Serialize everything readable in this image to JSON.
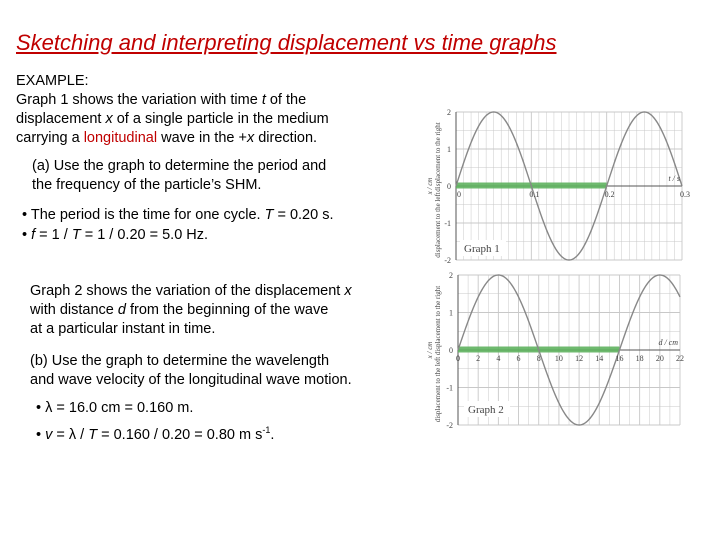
{
  "title": "Sketching and interpreting displacement vs time  graphs",
  "example_label": "EXAMPLE:",
  "intro": {
    "line1_a": "Graph 1 shows the variation with time ",
    "line1_var": "t",
    "line1_b": " of the",
    "line2_a": "displacement ",
    "line2_var": "x",
    "line2_b": " of a single particle in the medium",
    "line3_a": "carrying a ",
    "line3_highlight": "longitudinal",
    "line3_b": " wave  in the +",
    "line3_var": "x",
    "line3_c": " direction."
  },
  "part_a": {
    "line1": "(a) Use the graph to determine the period and",
    "line2": "the frequency of the particle’s SHM."
  },
  "answer_a": {
    "bullet": "•",
    "line1_a": " The period is the time for one cycle. ",
    "line1_var": "T",
    "line1_b": " = 0.20 s.",
    "line2_var1": "f",
    "line2_a": " = 1 / ",
    "line2_var2": "T",
    "line2_b": " = 1 / 0.20 = 5.0 Hz."
  },
  "graph2_intro": {
    "line1_a": "Graph 2 shows the variation of the displacement ",
    "line1_var": "x",
    "line2_a": "with distance ",
    "line2_var": "d",
    "line2_b": " from the beginning of the wave",
    "line3": "at a particular  instant in time."
  },
  "part_b": {
    "line1": "(b) Use the graph to determine the wavelength",
    "line2": "and wave velocity of the longitudinal wave motion."
  },
  "answer_b": {
    "line1_sym": "λ",
    "line1_b": " = 16.0 cm = 0.160 m.",
    "line2_var1": "v",
    "line2_a": " = ",
    "line2_sym": "λ",
    "line2_b": " / ",
    "line2_var2": "T",
    "line2_c": " = 0.160 / 0.20 = 0.80 m s",
    "line2_sup": "-1",
    "line2_d": "."
  },
  "colors": {
    "title": "#c00000",
    "curve": "#888888",
    "highlight": "#5fb35f",
    "grid": "#c8c8c8"
  },
  "chart_data": [
    {
      "type": "line",
      "title": "Graph 1",
      "xlabel": "t / s",
      "ylabel_top": "displacement to the right",
      "ylabel_mid": "x / cm",
      "ylabel_bottom": "displacement to the left",
      "xlim": [
        0,
        0.3
      ],
      "ylim": [
        -2,
        2
      ],
      "x_ticks": [
        "0",
        "0.1",
        "0.2",
        "0.3"
      ],
      "y_ticks": [
        "2",
        "1",
        "0",
        "-1",
        "-2"
      ],
      "amplitude": 2,
      "period": 0.2,
      "highlight_x": [
        0,
        0.2
      ]
    },
    {
      "type": "line",
      "title": "Graph 2",
      "xlabel": "d / cm",
      "ylabel_top": "displacement to the right",
      "ylabel_mid": "x / cm",
      "ylabel_bottom": "displacement to the left",
      "xlim": [
        0,
        22
      ],
      "ylim": [
        -2,
        2
      ],
      "x_ticks": [
        "0",
        "2",
        "4",
        "6",
        "8",
        "10",
        "12",
        "14",
        "16",
        "18",
        "20",
        "22"
      ],
      "y_ticks": [
        "2",
        "1",
        "0",
        "-1",
        "-2"
      ],
      "amplitude": 2,
      "wavelength": 16,
      "highlight_x": [
        0,
        16
      ]
    }
  ]
}
